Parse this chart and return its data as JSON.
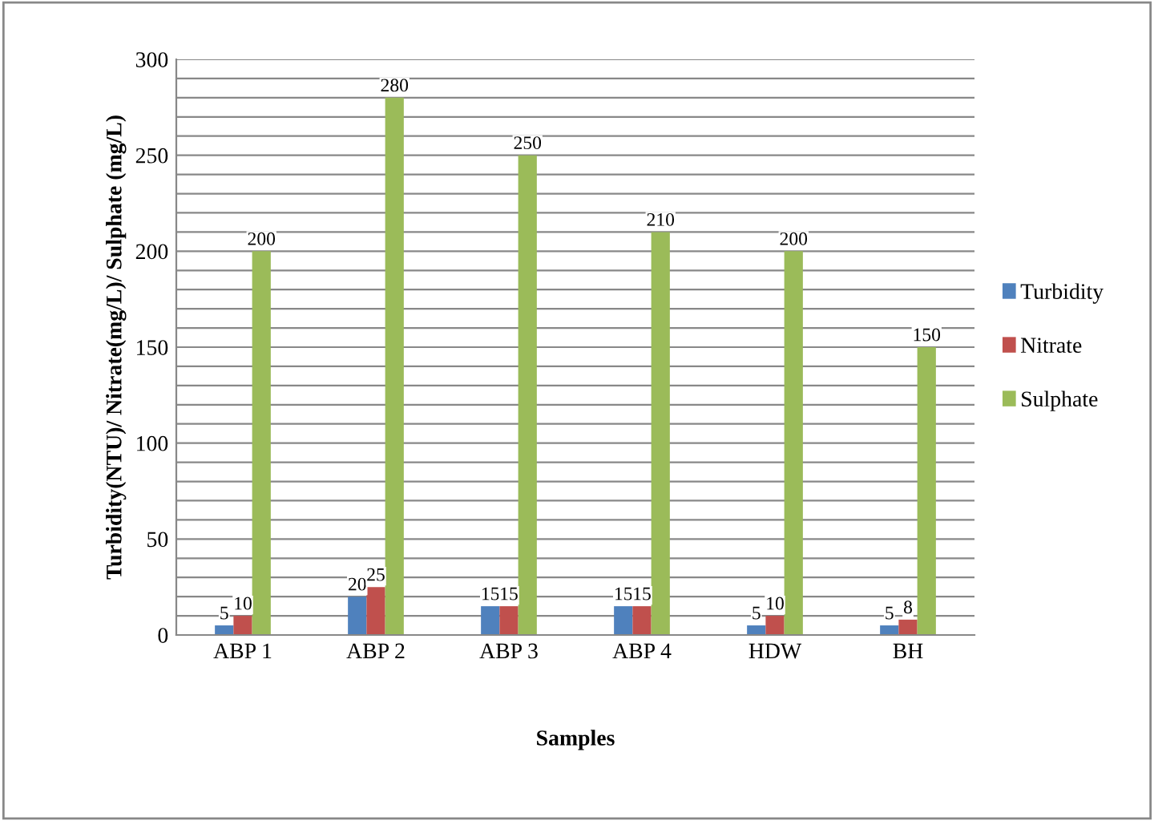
{
  "chart_data": {
    "type": "bar",
    "xlabel": "Samples",
    "ylabel": "Turbidity(NTU)/ Nitrate(mg/L)/ Sulphate (mg/L)",
    "categories": [
      "ABP 1",
      "ABP 2",
      "ABP 3",
      "ABP 4",
      "HDW",
      "BH"
    ],
    "series": [
      {
        "name": "Turbidity",
        "color": "#4f81bd",
        "values": [
          5,
          20,
          15,
          15,
          5,
          5
        ]
      },
      {
        "name": "Nitrate",
        "color": "#c0504d",
        "values": [
          10,
          25,
          15,
          15,
          10,
          8
        ]
      },
      {
        "name": "Sulphate",
        "color": "#9bbb59",
        "values": [
          200,
          280,
          250,
          210,
          200,
          150
        ]
      }
    ],
    "ylim": [
      0,
      300
    ],
    "yticks": [
      0,
      {
        "value": 10,
        "label": null
      },
      {
        "value": 20,
        "label": null
      },
      {
        "value": 30,
        "label": null
      },
      {
        "value": 40,
        "label": null
      },
      50,
      {
        "value": 60,
        "label": null
      },
      {
        "value": 70,
        "label": null
      },
      {
        "value": 80,
        "label": null
      },
      {
        "value": 90,
        "label": null
      },
      100,
      {
        "value": 110,
        "label": null
      },
      {
        "value": 120,
        "label": null
      },
      {
        "value": 130,
        "label": null
      },
      {
        "value": 140,
        "label": null
      },
      150,
      {
        "value": 160,
        "label": null
      },
      {
        "value": 170,
        "label": null
      },
      {
        "value": 180,
        "label": null
      },
      {
        "value": 190,
        "label": null
      },
      200,
      {
        "value": 210,
        "label": null
      },
      {
        "value": 220,
        "label": null
      },
      {
        "value": 230,
        "label": null
      },
      {
        "value": 240,
        "label": null
      },
      250,
      {
        "value": 260,
        "label": null
      },
      {
        "value": 270,
        "label": null
      },
      {
        "value": 280,
        "label": null
      },
      {
        "value": 290,
        "label": null
      },
      300
    ],
    "grid": "y",
    "legend": "right",
    "data_labels": true
  }
}
